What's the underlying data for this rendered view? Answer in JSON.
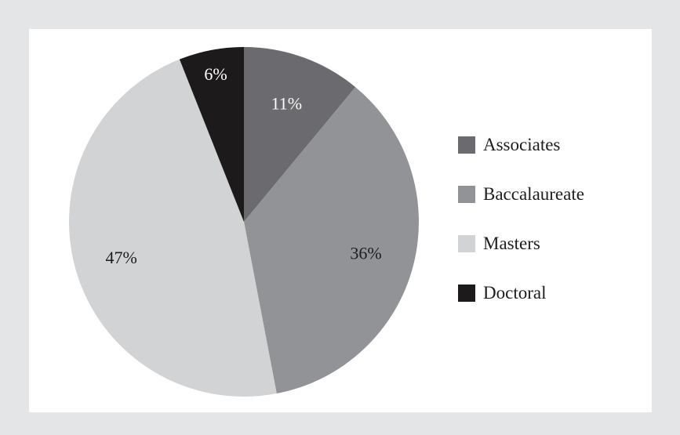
{
  "chart_data": {
    "type": "pie",
    "title": "",
    "start_angle_deg": 0,
    "direction": "clockwise",
    "legend_position": "right",
    "series": [
      {
        "label": "Associates",
        "value": 11,
        "value_label": "11%",
        "color": "#6b6b6f",
        "label_color": "#ffffff"
      },
      {
        "label": "Baccalaureate",
        "value": 36,
        "value_label": "36%",
        "color": "#929397",
        "label_color": "#1d1d1f"
      },
      {
        "label": "Masters",
        "value": 47,
        "value_label": "47%",
        "color": "#d2d3d5",
        "label_color": "#1d1d1f"
      },
      {
        "label": "Doctoral",
        "value": 6,
        "value_label": "6%",
        "color": "#1d1a1b",
        "label_color": "#ffffff"
      }
    ]
  },
  "legend": {
    "items": [
      {
        "label": "Associates",
        "color": "#6b6b6f"
      },
      {
        "label": "Baccalaureate",
        "color": "#929397"
      },
      {
        "label": "Masters",
        "color": "#d2d3d5"
      },
      {
        "label": "Doctoral",
        "color": "#1d1a1b"
      }
    ]
  }
}
